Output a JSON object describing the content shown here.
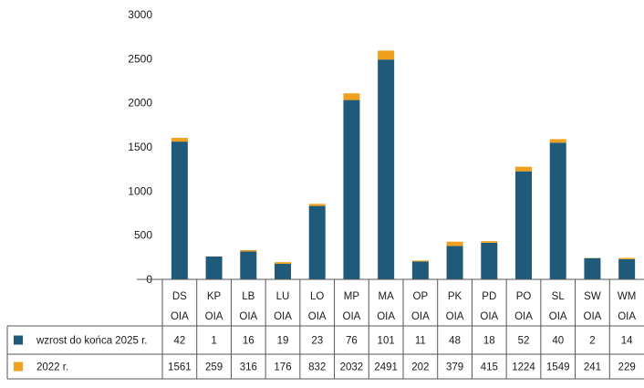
{
  "chart_data": {
    "type": "bar",
    "stacked": true,
    "categories": [
      [
        "DS",
        "OIA"
      ],
      [
        "KP",
        "OIA"
      ],
      [
        "LB",
        "OIA"
      ],
      [
        "LU",
        "OIA"
      ],
      [
        "LO",
        "OIA"
      ],
      [
        "MP",
        "OIA"
      ],
      [
        "MA",
        "OIA"
      ],
      [
        "OP",
        "OIA"
      ],
      [
        "PK",
        "OIA"
      ],
      [
        "PD",
        "OIA"
      ],
      [
        "PO",
        "OIA"
      ],
      [
        "SL",
        "OIA"
      ],
      [
        "SW",
        "OIA"
      ],
      [
        "WM",
        "OIA"
      ]
    ],
    "series": [
      {
        "name": "2022 r.",
        "color": "#1f5a7a",
        "values": [
          1561,
          259,
          316,
          176,
          832,
          2032,
          2491,
          202,
          379,
          415,
          1224,
          1549,
          241,
          229
        ]
      },
      {
        "name": "wzrost do końca 2025 r.",
        "color": "#f0a01c",
        "values": [
          42,
          1,
          16,
          19,
          23,
          76,
          101,
          11,
          48,
          18,
          52,
          40,
          2,
          14
        ]
      }
    ],
    "table_rows": [
      {
        "legend_label": "wzrost do końca 2025 r.",
        "color": "#1f5a7a",
        "values": [
          "42",
          "1",
          "16",
          "19",
          "23",
          "76",
          "101",
          "11",
          "48",
          "18",
          "52",
          "40",
          "2",
          "14"
        ]
      },
      {
        "legend_label": "2022 r.",
        "color": "#f0a01c",
        "values": [
          "1561",
          "259",
          "316",
          "176",
          "832",
          "2032",
          "2491",
          "202",
          "379",
          "415",
          "1224",
          "1549",
          "241",
          "229"
        ]
      }
    ],
    "ylim": [
      0,
      3000
    ],
    "yticks": [
      0,
      500,
      1000,
      1500,
      2000,
      2500,
      3000
    ],
    "grid": false,
    "legend_placement": "table-left"
  }
}
